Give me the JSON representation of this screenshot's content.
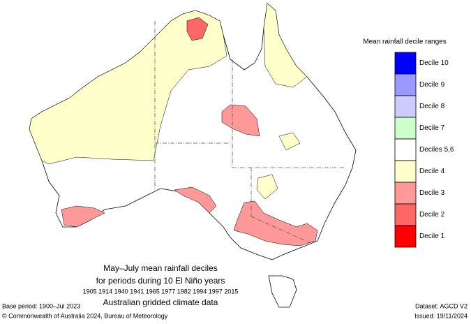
{
  "legend": {
    "title": "Mean rainfall decile ranges",
    "items": [
      {
        "label": "Decile 10",
        "color": "#0000ff"
      },
      {
        "label": "Decile 9",
        "color": "#9999ff"
      },
      {
        "label": "Decile 8",
        "color": "#ccccff"
      },
      {
        "label": "Decile 7",
        "color": "#ccffcc"
      },
      {
        "label": "Deciles 5,6",
        "color": "#ffffff"
      },
      {
        "label": "Decile 4",
        "color": "#ffffcc"
      },
      {
        "label": "Decile 3",
        "color": "#ff9999"
      },
      {
        "label": "Decile 2",
        "color": "#ff6666"
      },
      {
        "label": "Decile 1",
        "color": "#ff0000"
      }
    ]
  },
  "caption": {
    "title": "May–July mean rainfall deciles",
    "subtitle": "for periods during 10 El Niño years",
    "years": "1905 1914 1940 1941 1965 1977 1982 1994 1997 2015",
    "source": "Australian gridded climate data"
  },
  "footer": {
    "base_period": "Base period: 1900–Jul 2023",
    "copyright": "© Commonwealth of Australia 2024, Bureau of Meteorology",
    "dataset": "Dataset: AGCD V2",
    "issued": "Issued: 19/11/2024"
  }
}
